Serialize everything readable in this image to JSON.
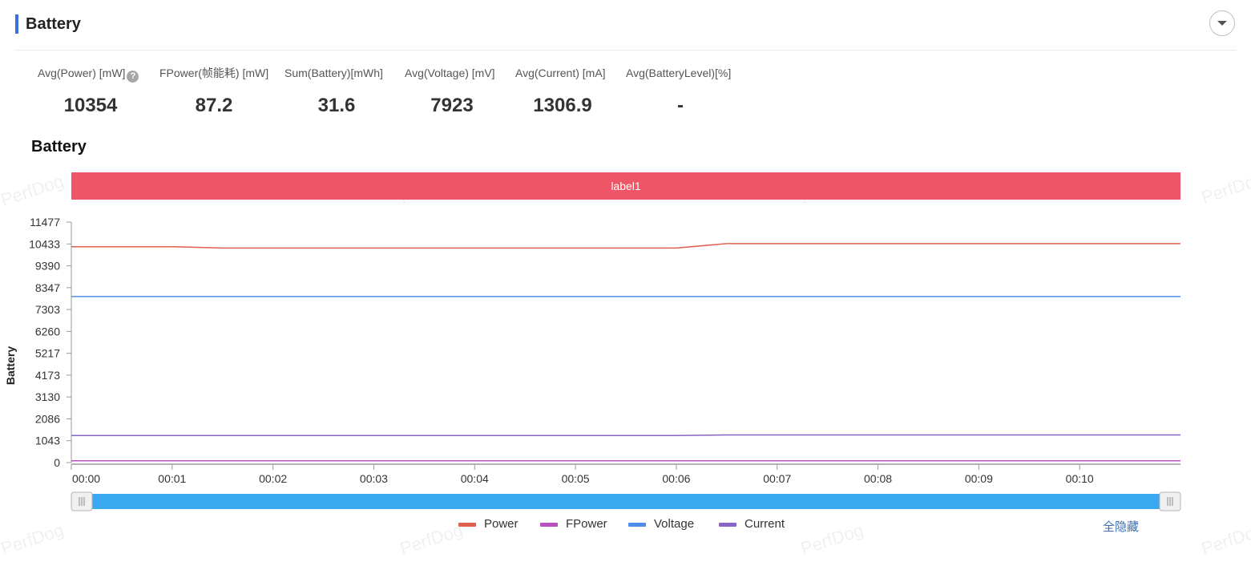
{
  "section": {
    "title": "Battery"
  },
  "stats": [
    {
      "label": "Avg(Power) [mW]",
      "value": "10354",
      "has_help": true
    },
    {
      "label": "FPower(帧能耗) [mW]",
      "value": "87.2"
    },
    {
      "label": "Sum(Battery)[mWh]",
      "value": "31.6"
    },
    {
      "label": "Avg(Voltage) [mV]",
      "value": "7923"
    },
    {
      "label": "Avg(Current) [mA]",
      "value": "1306.9"
    },
    {
      "label": "Avg(BatteryLevel)[%]",
      "value": "-"
    }
  ],
  "icons": {
    "help": "?",
    "collapse": "chevron-down-icon"
  },
  "watermark": "PerfDog",
  "chart_data": {
    "type": "line",
    "title": "Battery",
    "ylabel": "Battery",
    "mark_label": "label1",
    "mark_color": "#ee5566",
    "yticks": [
      "0",
      "1043",
      "2086",
      "3130",
      "4173",
      "5217",
      "6260",
      "7303",
      "8347",
      "9390",
      "10433",
      "11477"
    ],
    "ylim": [
      0,
      11477
    ],
    "xticks": [
      "00:00",
      "00:01",
      "00:02",
      "00:03",
      "00:04",
      "00:05",
      "00:06",
      "00:07",
      "00:08",
      "00:09",
      "00:10"
    ],
    "xlim": [
      0,
      11
    ],
    "series": [
      {
        "name": "Power",
        "color": "#e06050",
        "x": [
          0,
          1,
          1.5,
          6,
          6.5,
          11
        ],
        "values": [
          10300,
          10300,
          10240,
          10240,
          10450,
          10450
        ]
      },
      {
        "name": "FPower",
        "color": "#b94fc0",
        "x": [
          0,
          11
        ],
        "values": [
          87,
          87
        ]
      },
      {
        "name": "Voltage",
        "color": "#4b8ee8",
        "x": [
          0,
          11
        ],
        "values": [
          7923,
          7923
        ]
      },
      {
        "name": "Current",
        "color": "#8a63c8",
        "x": [
          0,
          6,
          6.5,
          11
        ],
        "values": [
          1290,
          1290,
          1320,
          1320
        ]
      }
    ]
  },
  "legend_hide_all": "全隐藏"
}
